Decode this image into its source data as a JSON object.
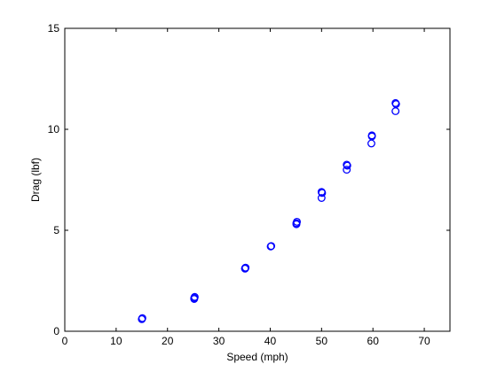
{
  "chart_data": {
    "type": "scatter",
    "title": "",
    "xlabel": "Speed (mph)",
    "ylabel": "Drag (lbf)",
    "xlim": [
      0,
      75
    ],
    "ylim": [
      0,
      15
    ],
    "xticks": [
      0,
      10,
      20,
      30,
      40,
      50,
      60,
      70
    ],
    "yticks": [
      0,
      5,
      10,
      15
    ],
    "grid": false,
    "marker": "open-circle",
    "marker_color": "#0000ff",
    "series": [
      {
        "points": [
          [
            15,
            0.6
          ],
          [
            15.1,
            0.65
          ],
          [
            25.2,
            1.6
          ],
          [
            25.3,
            1.7
          ],
          [
            25.2,
            1.65
          ],
          [
            35.1,
            3.1
          ],
          [
            35.2,
            3.15
          ],
          [
            35.1,
            3.12
          ],
          [
            40.1,
            4.2
          ],
          [
            40.2,
            4.22
          ],
          [
            45.1,
            5.3
          ],
          [
            45.2,
            5.42
          ],
          [
            45.1,
            5.35
          ],
          [
            50.0,
            6.6
          ],
          [
            50.0,
            6.9
          ],
          [
            50.1,
            6.85
          ],
          [
            54.9,
            8.0
          ],
          [
            54.9,
            8.25
          ],
          [
            55.0,
            8.2
          ],
          [
            59.7,
            9.3
          ],
          [
            59.8,
            9.7
          ],
          [
            59.8,
            9.65
          ],
          [
            64.4,
            10.9
          ],
          [
            64.4,
            11.3
          ],
          [
            64.5,
            11.25
          ]
        ]
      }
    ]
  }
}
